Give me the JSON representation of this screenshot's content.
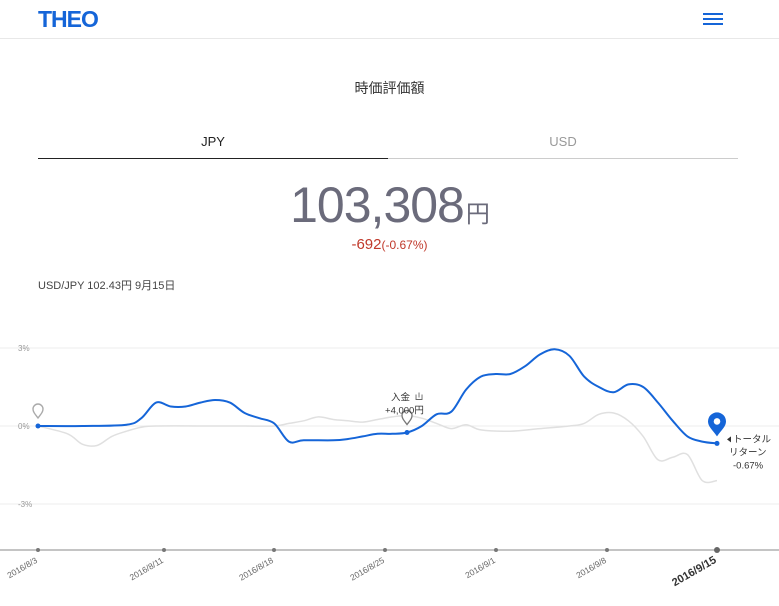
{
  "header": {
    "logo": "THEO",
    "menu_icon": "hamburger-menu-icon"
  },
  "page_title": "時価評価額",
  "tabs": [
    {
      "label": "JPY",
      "active": true
    },
    {
      "label": "USD",
      "active": false
    }
  ],
  "valuation": {
    "amount": "103,308",
    "unit": "円",
    "change": "-692",
    "change_pct": "(-0.67%)"
  },
  "fx_rate": "USD/JPY 102.43円 9月15日",
  "colors": {
    "brand": "#1565d8",
    "negative": "#c0392b",
    "benchmark": "#e0e0e0"
  },
  "chart_data": {
    "type": "line",
    "y_ticks": [
      "3%",
      "0%",
      "-3%"
    ],
    "ylim": [
      -4.5,
      4.5
    ],
    "x_ticks": [
      "2016/8/3",
      "2016/8/11",
      "2016/8/18",
      "2016/8/25",
      "2016/9/1",
      "2016/9/8",
      "2016/9/15"
    ],
    "series": [
      {
        "name": "",
        "color": "#1565d8",
        "values": [
          [
            0,
            0
          ],
          [
            3,
            0
          ],
          [
            6,
            0.05
          ],
          [
            7,
            0.3
          ],
          [
            8,
            0.9
          ],
          [
            9,
            0.75
          ],
          [
            10,
            0.75
          ],
          [
            11,
            0.9
          ],
          [
            12,
            1.0
          ],
          [
            13,
            0.9
          ],
          [
            14,
            0.5
          ],
          [
            15,
            0.3
          ],
          [
            16,
            0.1
          ],
          [
            17,
            -0.6
          ],
          [
            18,
            -0.55
          ],
          [
            20,
            -0.55
          ],
          [
            21,
            -0.5
          ],
          [
            22,
            -0.4
          ],
          [
            23,
            -0.3
          ],
          [
            24,
            -0.3
          ],
          [
            25,
            -0.25
          ],
          [
            26,
            0
          ],
          [
            27,
            0.45
          ],
          [
            28,
            0.55
          ],
          [
            29,
            1.4
          ],
          [
            30,
            1.9
          ],
          [
            31,
            2.0
          ],
          [
            32,
            2.0
          ],
          [
            33,
            2.3
          ],
          [
            34,
            2.75
          ],
          [
            35,
            2.95
          ],
          [
            36,
            2.7
          ],
          [
            37,
            1.9
          ],
          [
            38,
            1.5
          ],
          [
            39,
            1.3
          ],
          [
            40,
            1.6
          ],
          [
            41,
            1.5
          ],
          [
            42,
            0.9
          ],
          [
            43,
            0.2
          ],
          [
            44,
            -0.4
          ],
          [
            45,
            -0.6
          ],
          [
            46,
            -0.67
          ]
        ]
      },
      {
        "name": "",
        "color": "#e0e0e0",
        "values": [
          [
            0,
            0
          ],
          [
            2,
            -0.3
          ],
          [
            3,
            -0.7
          ],
          [
            4,
            -0.75
          ],
          [
            5,
            -0.4
          ],
          [
            6,
            -0.2
          ],
          [
            7,
            -0.05
          ],
          [
            8,
            0
          ],
          [
            12,
            0
          ],
          [
            14,
            0
          ],
          [
            16,
            0
          ],
          [
            17,
            0.1
          ],
          [
            18,
            0.2
          ],
          [
            19,
            0.35
          ],
          [
            20,
            0.25
          ],
          [
            21,
            0.2
          ],
          [
            22,
            0.15
          ],
          [
            23,
            0.25
          ],
          [
            24,
            0.35
          ],
          [
            25,
            0.4
          ],
          [
            26,
            0.3
          ],
          [
            27,
            0.1
          ],
          [
            28,
            -0.1
          ],
          [
            29,
            0.05
          ],
          [
            30,
            -0.15
          ],
          [
            32,
            -0.2
          ],
          [
            34,
            -0.1
          ],
          [
            36,
            0
          ],
          [
            37,
            0.1
          ],
          [
            38,
            0.45
          ],
          [
            39,
            0.5
          ],
          [
            40,
            0.2
          ],
          [
            41,
            -0.4
          ],
          [
            42,
            -1.3
          ],
          [
            43,
            -1.2
          ],
          [
            44,
            -1.1
          ],
          [
            45,
            -2.1
          ],
          [
            46,
            -2.1
          ]
        ]
      }
    ],
    "annotations": [
      {
        "text": "入金",
        "amount": "+4,000円",
        "x": 25
      },
      {
        "text": "トータル",
        "text2": "リターン",
        "value": "-0.67%",
        "x": 46
      }
    ]
  }
}
